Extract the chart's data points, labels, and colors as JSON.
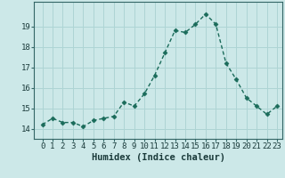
{
  "x": [
    0,
    1,
    2,
    3,
    4,
    5,
    6,
    7,
    8,
    9,
    10,
    11,
    12,
    13,
    14,
    15,
    16,
    17,
    18,
    19,
    20,
    21,
    22,
    23
  ],
  "y": [
    14.2,
    14.5,
    14.3,
    14.3,
    14.1,
    14.4,
    14.5,
    14.6,
    15.3,
    15.1,
    15.7,
    16.6,
    17.7,
    18.8,
    18.7,
    19.1,
    19.6,
    19.1,
    17.2,
    16.4,
    15.5,
    15.1,
    14.7,
    15.1
  ],
  "line_color": "#1a6b5a",
  "marker": "D",
  "marker_size": 2.5,
  "bg_color": "#cce8e8",
  "grid_color": "#aed4d4",
  "xlabel": "Humidex (Indice chaleur)",
  "ylim": [
    13.5,
    20.2
  ],
  "yticks": [
    14,
    15,
    16,
    17,
    18,
    19
  ],
  "xticks": [
    0,
    1,
    2,
    3,
    4,
    5,
    6,
    7,
    8,
    9,
    10,
    11,
    12,
    13,
    14,
    15,
    16,
    17,
    18,
    19,
    20,
    21,
    22,
    23
  ],
  "tick_fontsize": 6.5,
  "xlabel_fontsize": 7.5,
  "linewidth": 1.0
}
